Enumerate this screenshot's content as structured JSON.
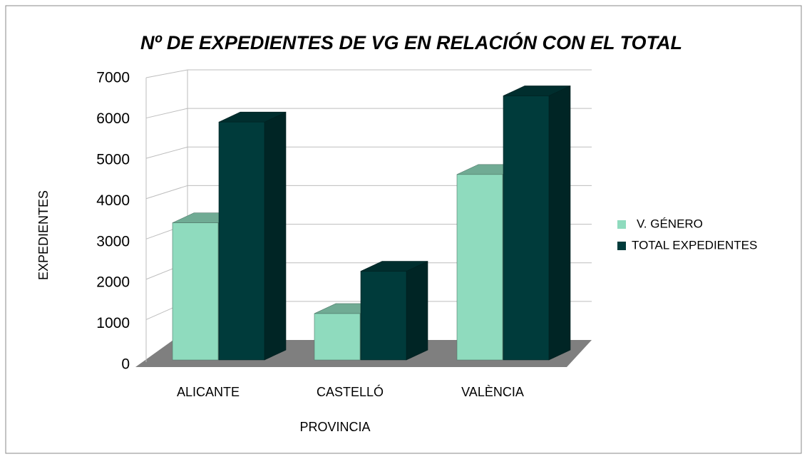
{
  "chart_data": {
    "type": "bar3d",
    "title": "Nº DE EXPEDIENTES DE VG EN RELACIÓN CON EL TOTAL",
    "xlabel": "PROVINCIA",
    "ylabel": "EXPEDIENTES",
    "categories": [
      "ALICANTE",
      "CASTELLÓ",
      "VALÈNCIA"
    ],
    "series": [
      {
        "name": "V. GÉNERO",
        "color": "#8fdbbe",
        "values": [
          3400,
          1150,
          4600
        ]
      },
      {
        "name": "TOTAL EXPEDIENTES",
        "color": "#003b3b",
        "values": [
          5900,
          2200,
          6550
        ]
      }
    ],
    "ylim": [
      0,
      7000
    ],
    "yticks": [
      0,
      1000,
      2000,
      3000,
      4000,
      5000,
      6000,
      7000
    ],
    "grid": true,
    "legend": "right"
  }
}
